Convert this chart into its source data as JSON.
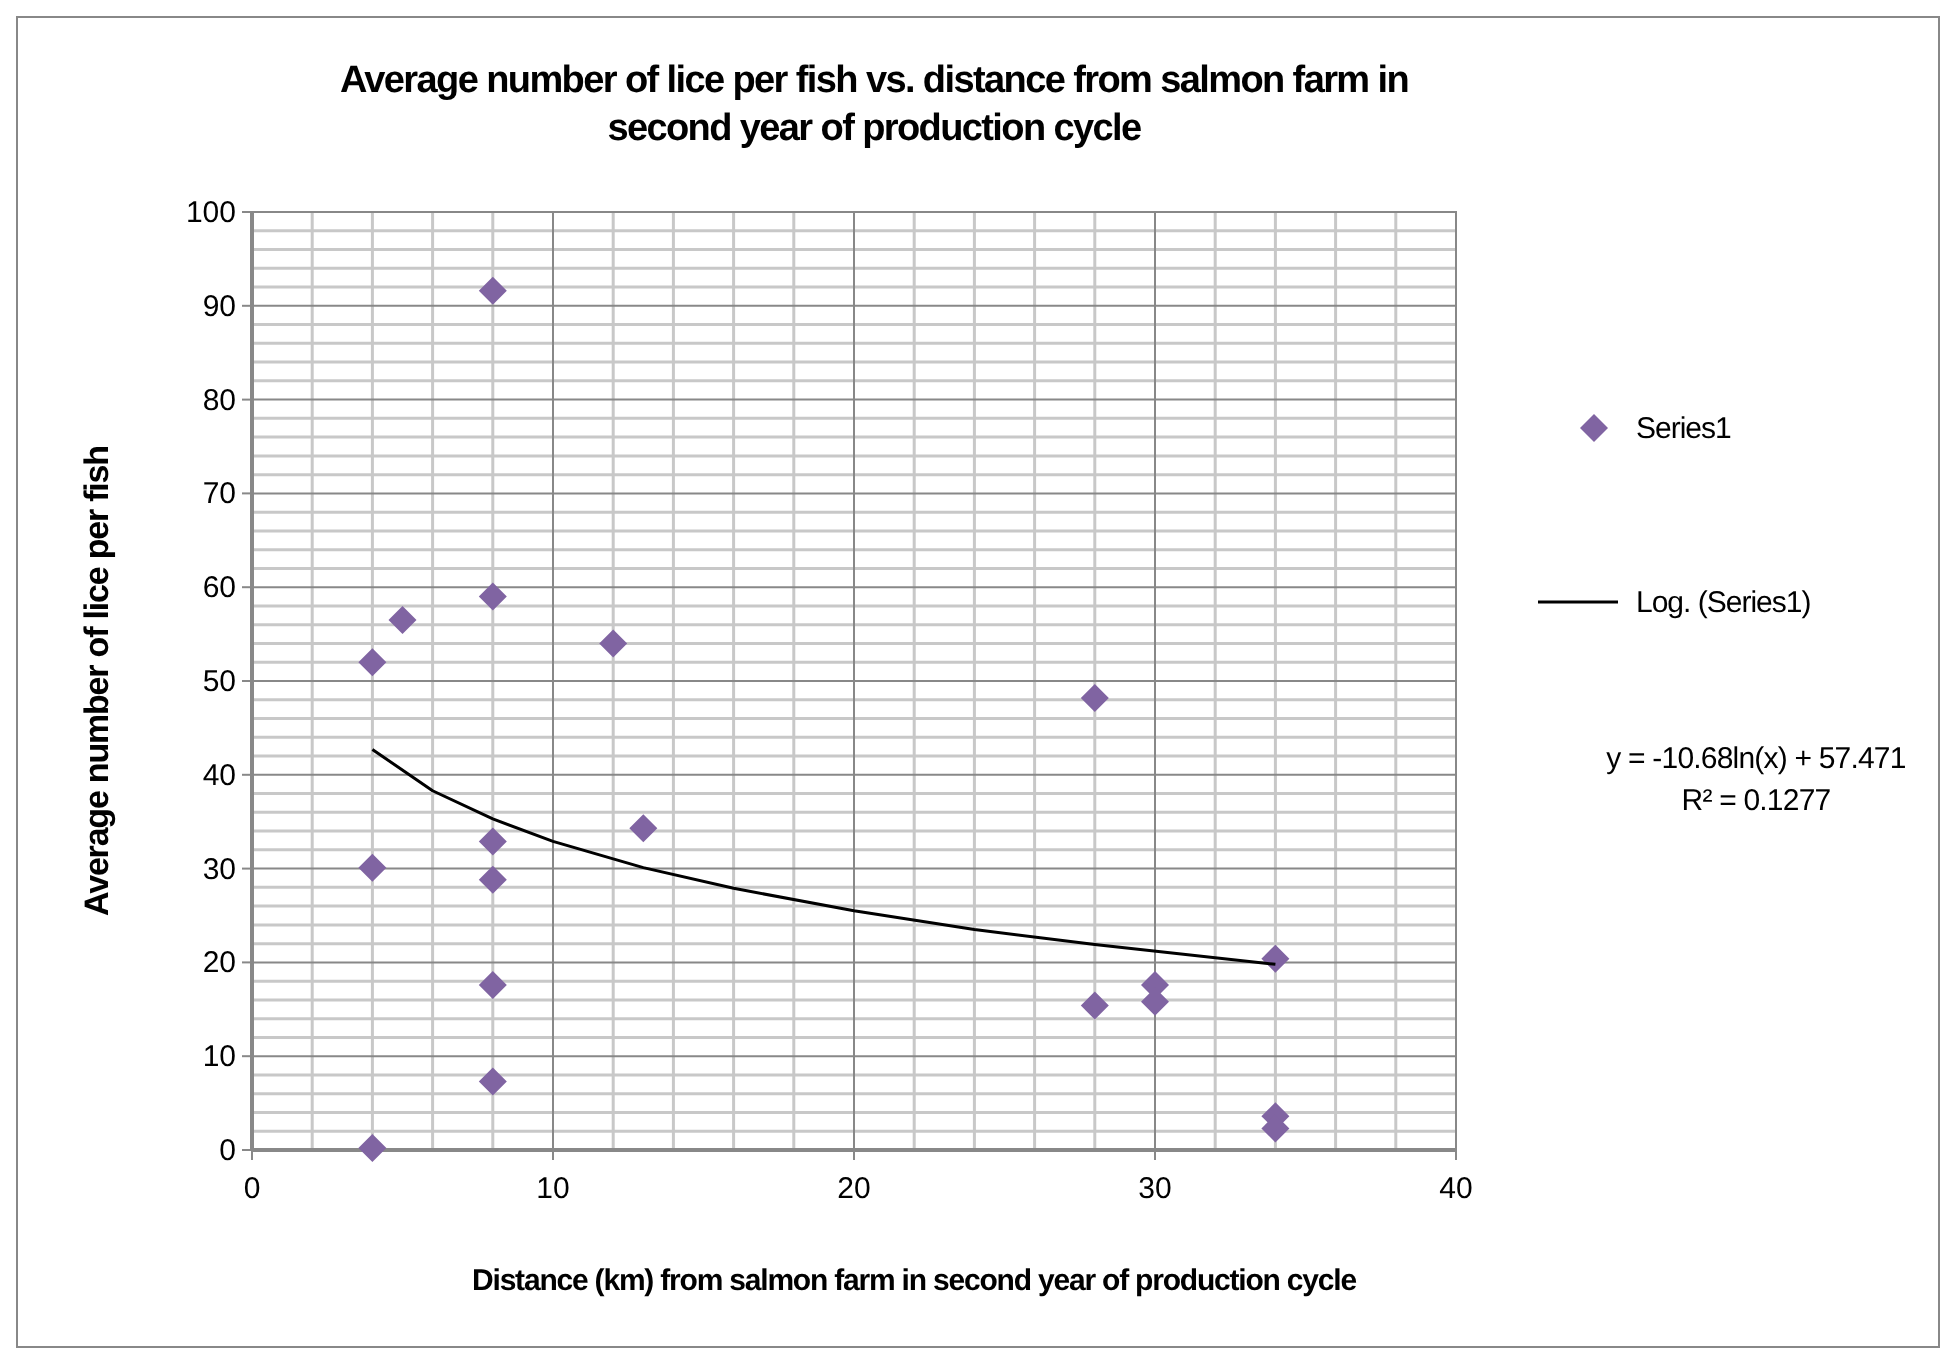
{
  "chart_data": {
    "type": "scatter",
    "title": "Average number of lice per fish vs. distance from salmon farm in second year of production cycle",
    "xlabel": "Distance (km) from salmon farm in second year of production cycle",
    "ylabel": "Average number of lice per fish",
    "series": [
      {
        "name": "Series1",
        "color": "#8064a2",
        "marker": "diamond",
        "x": [
          4,
          4,
          4,
          5,
          8,
          8,
          8,
          8,
          8,
          8,
          12,
          13,
          28,
          28,
          30,
          30,
          34,
          34,
          34
        ],
        "values": [
          0.2,
          30.1,
          52,
          56.5,
          91.6,
          59,
          32.9,
          28.8,
          17.6,
          7.3,
          54,
          34.3,
          48.2,
          15.4,
          17.6,
          15.8,
          20.4,
          3.6,
          2.3
        ]
      },
      {
        "name": "Log. (Series1)",
        "type": "line",
        "color": "#000000",
        "marker": "none",
        "line_style": "solid",
        "x": [
          4,
          6,
          8,
          10,
          13,
          16,
          20,
          24,
          28,
          34
        ],
        "values": [
          42.7,
          38.3,
          35.3,
          32.9,
          30.1,
          27.9,
          25.5,
          23.5,
          21.9,
          19.8
        ]
      }
    ],
    "xlim": [
      0,
      40
    ],
    "xticks": [
      0,
      10,
      20,
      30,
      40
    ],
    "ylim": [
      0,
      100
    ],
    "yticks": [
      0,
      10,
      20,
      30,
      40,
      50,
      60,
      70,
      80,
      90,
      100
    ],
    "grid": true,
    "legend": "right",
    "annotations": [
      "y = -10.68ln(x) + 57.471",
      "R² = 0.1277"
    ]
  }
}
